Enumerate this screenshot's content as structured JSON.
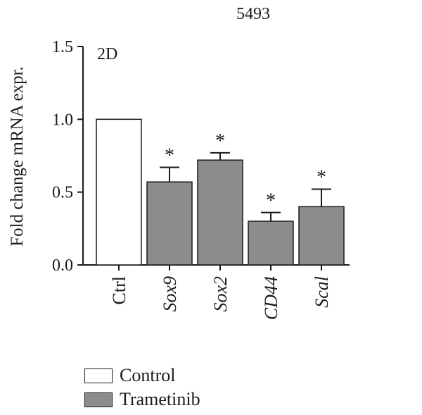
{
  "chart_data": {
    "type": "bar",
    "title": "5493",
    "panel_label": "2D",
    "ylabel": "Fold change mRNA expr.",
    "ylim": [
      0,
      1.5
    ],
    "yticks": [
      "0.0",
      "0.5",
      "1.0",
      "1.5"
    ],
    "yticks_values": [
      0,
      0.5,
      1.0,
      1.5
    ],
    "categories": [
      "Ctrl",
      "Sox9",
      "Sox2",
      "CD44",
      "Scal"
    ],
    "italic_categories": [
      false,
      true,
      true,
      true,
      true
    ],
    "values": [
      1.0,
      0.57,
      0.72,
      0.3,
      0.4
    ],
    "errors": [
      0,
      0.1,
      0.05,
      0.06,
      0.12
    ],
    "significance": [
      "",
      "*",
      "*",
      "*",
      "*"
    ],
    "groups": [
      "Control",
      "Trametinib",
      "Trametinib",
      "Trametinib",
      "Trametinib"
    ],
    "legend": [
      {
        "label": "Control",
        "color": "#ffffff"
      },
      {
        "label": "Trametinib",
        "color": "#8c8c8c"
      }
    ],
    "legend_position": "bottom-left",
    "grid": false
  }
}
